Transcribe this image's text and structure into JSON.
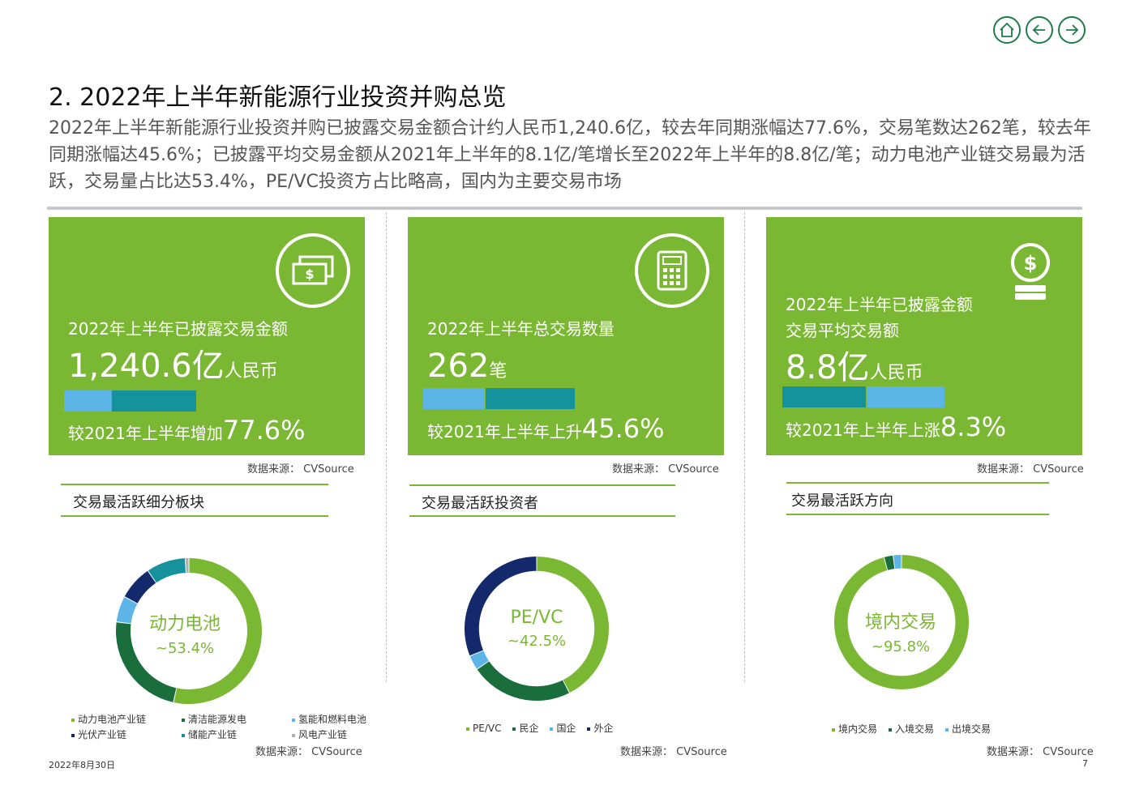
{
  "header": {
    "title": "2. 2022年上半年新能源行业投资并购总览",
    "summary": "2022年上半年新能源行业投资并购已披露交易金额合计约人民币1,240.6亿，较去年同期涨幅达77.6%，交易笔数达262笔，较去年同期涨幅达45.6%；已披露平均交易金额从2021年上半年的8.1亿/笔增长至2022年上半年的8.8亿/笔；动力电池产业链交易最为活跃，交易量占比达53.4%，PE/VC投资方占比略高，国内为主要交易市场"
  },
  "nav": {
    "home_icon": "home-icon",
    "back_icon": "arrow-left-icon",
    "forward_icon": "arrow-right-icon"
  },
  "colors": {
    "green": "#7ab733",
    "dark_green": "#1a6e3c",
    "teal": "#16929d",
    "light_blue": "#5db4e6",
    "navy": "#13296b"
  },
  "cards": [
    {
      "label": "2022年上半年已披露交易金额",
      "value": "1,240.6亿",
      "unit": "人民币",
      "compare": "较2021年上半年增加",
      "change": "77.6%",
      "icon": "banknote-icon",
      "source": "数据来源： CVSource"
    },
    {
      "label": "2022年上半年总交易数量",
      "value": "262",
      "unit": "笔",
      "compare": "较2021年上半年上升",
      "change": "45.6%",
      "icon": "calculator-icon",
      "source": "数据来源： CVSource"
    },
    {
      "label": "2022年上半年已披露金额",
      "label2": "交易平均交易额",
      "value": "8.8亿",
      "unit": "人民币",
      "compare": "较2021年上半年上涨",
      "change": "8.3%",
      "icon": "coin-stack-icon",
      "source": "数据来源： CVSource"
    }
  ],
  "sections": [
    {
      "title": "交易最活跃细分板块",
      "center": "动力电池",
      "center_value": "~53.4%",
      "source": "数据来源： CVSource",
      "legend": [
        "动力电池产业链",
        "清洁能源发电",
        "氢能和燃料电池",
        "光伏产业链",
        "储能产业链",
        "风电产业链"
      ]
    },
    {
      "title": "交易最活跃投资者",
      "center": "PE/VC",
      "center_value": "~42.5%",
      "source": "数据来源： CVSource",
      "legend": [
        "PE/VC",
        "民企",
        "国企",
        "外企"
      ]
    },
    {
      "title": "交易最活跃方向",
      "center": "境内交易",
      "center_value": "~95.8%",
      "source": "数据来源： CVSource",
      "legend": [
        "境内交易",
        "入境交易",
        "出境交易"
      ]
    }
  ],
  "chart_data": [
    {
      "type": "pie",
      "title": "",
      "categories": [
        "动力电池产业链",
        "清洁能源发电",
        "氢能和燃料电池",
        "光伏产业链",
        "储能产业链",
        "风电产业链"
      ],
      "values": [
        53.4,
        23.6,
        5.8,
        7.7,
        8.7,
        0.8
      ],
      "colors": [
        "#7ab733",
        "#1a6e3c",
        "#5db4e6",
        "#13296b",
        "#16929d",
        "#b0b0b0"
      ]
    },
    {
      "type": "pie",
      "title": "",
      "categories": [
        "PE/VC",
        "民企",
        "国企",
        "外企"
      ],
      "values": [
        42.5,
        23.0,
        3.3,
        31.2
      ],
      "colors": [
        "#7ab733",
        "#1a6e3c",
        "#5db4e6",
        "#13296b"
      ]
    },
    {
      "type": "pie",
      "title": "",
      "categories": [
        "境内交易",
        "入境交易",
        "出境交易"
      ],
      "values": [
        95.8,
        2.2,
        2.0
      ],
      "colors": [
        "#7ab733",
        "#1a6e3c",
        "#5db4e6"
      ]
    }
  ],
  "footer": {
    "date": "2022年8月30日",
    "page": "7"
  }
}
